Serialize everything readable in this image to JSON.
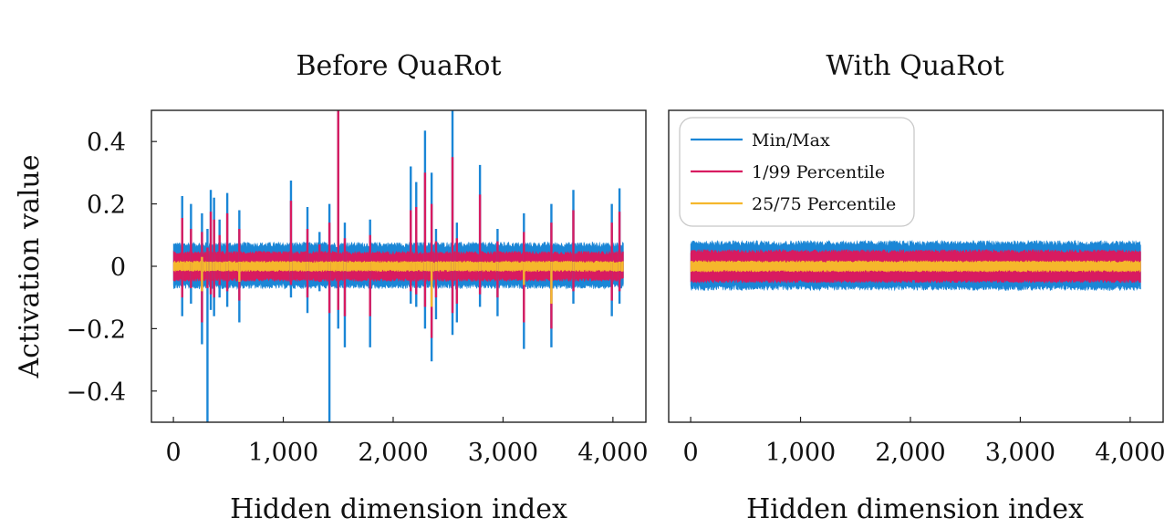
{
  "chart_data": [
    {
      "type": "line",
      "title": "Before QuaRot",
      "xlabel": "Hidden dimension index",
      "ylabel": "Activation value",
      "xlim": [
        -200,
        4300
      ],
      "ylim": [
        -0.5,
        0.5
      ],
      "x_ticks": [
        0,
        1000,
        2000,
        3000,
        4000
      ],
      "x_tick_labels": [
        "0",
        "1,000",
        "2,000",
        "3,000",
        "4,000"
      ],
      "y_ticks": [
        -0.4,
        -0.2,
        0,
        0.2,
        0.4
      ],
      "y_tick_labels": [
        "−0.4",
        "−0.2",
        "0",
        "0.2",
        "0.4"
      ],
      "n_dims": 4096,
      "bands": {
        "minmax": [
          -0.06,
          0.065
        ],
        "p1_99": [
          -0.04,
          0.04
        ],
        "p25_75": [
          -0.012,
          0.012
        ]
      },
      "outliers": [
        {
          "x": 80,
          "max": 0.225,
          "min": -0.16,
          "p99": 0.155,
          "p1": -0.1
        },
        {
          "x": 160,
          "max": 0.2,
          "min": -0.12,
          "p99": 0.12,
          "p1": -0.07
        },
        {
          "x": 260,
          "max": 0.17,
          "min": -0.25,
          "p99": 0.11,
          "p1": -0.18,
          "p75": 0.03,
          "p25": -0.08
        },
        {
          "x": 310,
          "max": 0.12,
          "min": -0.5,
          "p99": 0.06,
          "p1": -0.07
        },
        {
          "x": 340,
          "max": 0.245,
          "min": -0.14,
          "p99": 0.175,
          "p1": -0.09
        },
        {
          "x": 370,
          "max": 0.22,
          "min": -0.16,
          "p99": 0.15,
          "p1": -0.1
        },
        {
          "x": 420,
          "max": 0.15,
          "min": -0.1,
          "p99": 0.1,
          "p1": -0.06
        },
        {
          "x": 490,
          "max": 0.235,
          "min": -0.13,
          "p99": 0.17,
          "p1": -0.08
        },
        {
          "x": 600,
          "max": 0.18,
          "min": -0.18,
          "p99": 0.12,
          "p1": -0.11,
          "p25": -0.05
        },
        {
          "x": 1070,
          "max": 0.275,
          "min": -0.1,
          "p99": 0.21,
          "p1": -0.06
        },
        {
          "x": 1220,
          "max": 0.19,
          "min": -0.15,
          "p99": 0.12,
          "p1": -0.1
        },
        {
          "x": 1330,
          "max": 0.11,
          "min": -0.08,
          "p99": 0.07,
          "p1": -0.05
        },
        {
          "x": 1420,
          "max": 0.2,
          "min": -0.5,
          "p99": 0.14,
          "p1": -0.15
        },
        {
          "x": 1500,
          "max": 0.5,
          "min": -0.2,
          "p99": 0.5,
          "p1": -0.14
        },
        {
          "x": 1560,
          "max": 0.14,
          "min": -0.26,
          "p99": 0.09,
          "p1": -0.16
        },
        {
          "x": 1790,
          "max": 0.15,
          "min": -0.26,
          "p99": 0.1,
          "p1": -0.16
        },
        {
          "x": 2160,
          "max": 0.32,
          "min": -0.12,
          "p99": 0.18,
          "p1": -0.08
        },
        {
          "x": 2210,
          "max": 0.27,
          "min": -0.13,
          "p99": 0.19,
          "p1": -0.09
        },
        {
          "x": 2290,
          "max": 0.435,
          "min": -0.2,
          "p99": 0.3,
          "p1": -0.13
        },
        {
          "x": 2350,
          "max": 0.3,
          "min": -0.305,
          "p99": 0.2,
          "p1": -0.23,
          "p25": -0.13
        },
        {
          "x": 2390,
          "max": 0.12,
          "min": -0.17,
          "p99": 0.08,
          "p1": -0.1
        },
        {
          "x": 2540,
          "max": 0.5,
          "min": -0.22,
          "p99": 0.35,
          "p1": -0.15
        },
        {
          "x": 2580,
          "max": 0.14,
          "min": -0.18,
          "p99": 0.09,
          "p1": -0.12
        },
        {
          "x": 2790,
          "max": 0.325,
          "min": -0.13,
          "p99": 0.23,
          "p1": -0.09
        },
        {
          "x": 2950,
          "max": 0.12,
          "min": -0.16,
          "p99": 0.08,
          "p1": -0.1
        },
        {
          "x": 3190,
          "max": 0.17,
          "min": -0.265,
          "p99": 0.11,
          "p1": -0.18,
          "p25": -0.06
        },
        {
          "x": 3440,
          "max": 0.2,
          "min": -0.26,
          "p99": 0.14,
          "p1": -0.2,
          "p25": -0.12
        },
        {
          "x": 3640,
          "max": 0.245,
          "min": -0.12,
          "p99": 0.18,
          "p1": -0.08
        },
        {
          "x": 3990,
          "max": 0.2,
          "min": -0.16,
          "p99": 0.14,
          "p1": -0.11
        },
        {
          "x": 4060,
          "max": 0.25,
          "min": -0.12,
          "p99": 0.175,
          "p1": -0.08
        }
      ]
    },
    {
      "type": "line",
      "title": "With QuaRot",
      "xlabel": "Hidden dimension index",
      "ylabel": "",
      "xlim": [
        -200,
        4300
      ],
      "ylim": [
        -0.5,
        0.5
      ],
      "x_ticks": [
        0,
        1000,
        2000,
        3000,
        4000
      ],
      "x_tick_labels": [
        "0",
        "1,000",
        "2,000",
        "3,000",
        "4,000"
      ],
      "n_dims": 4096,
      "bands": {
        "minmax": [
          -0.065,
          0.07
        ],
        "p1_99": [
          -0.045,
          0.045
        ],
        "p25_75": [
          -0.013,
          0.013
        ]
      },
      "outliers": [],
      "legend_position": "top-left"
    }
  ],
  "legend": {
    "entries": [
      {
        "label": "Min/Max",
        "color": "#1a86d6"
      },
      {
        "label": "1/99 Percentile",
        "color": "#d81b60"
      },
      {
        "label": "25/75 Percentile",
        "color": "#f5b72c"
      }
    ]
  },
  "colors": {
    "minmax": "#1a86d6",
    "p1_99": "#d81b60",
    "p25_75": "#f5b72c"
  }
}
